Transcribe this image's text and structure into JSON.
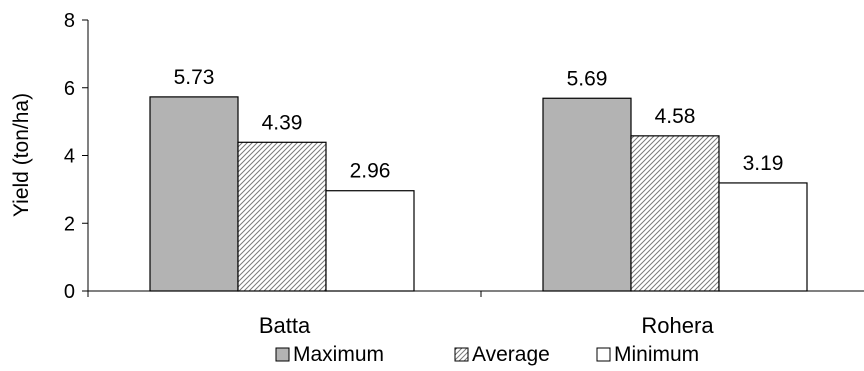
{
  "chart_data": {
    "type": "bar",
    "title": "",
    "xlabel": "",
    "ylabel": "Yield (ton/ha)",
    "ylim": [
      0,
      8
    ],
    "yticks": [
      "0",
      "2",
      "4",
      "6",
      "8"
    ],
    "categories": [
      "Batta",
      "Rohera"
    ],
    "series": [
      {
        "name": "Maximum",
        "values": [
          5.73,
          5.69
        ],
        "value_labels": [
          "5.73",
          "5.69"
        ],
        "fill": "#b3b3b3",
        "pattern": "solid"
      },
      {
        "name": "Average",
        "values": [
          4.39,
          4.58
        ],
        "value_labels": [
          "4.39",
          "4.58"
        ],
        "fill": "#ffffff",
        "pattern": "hatch"
      },
      {
        "name": "Minimum",
        "values": [
          2.96,
          3.19
        ],
        "value_labels": [
          "2.96",
          "3.19"
        ],
        "fill": "#ffffff",
        "pattern": "solid"
      }
    ],
    "grid": false,
    "legend_position": "bottom"
  }
}
